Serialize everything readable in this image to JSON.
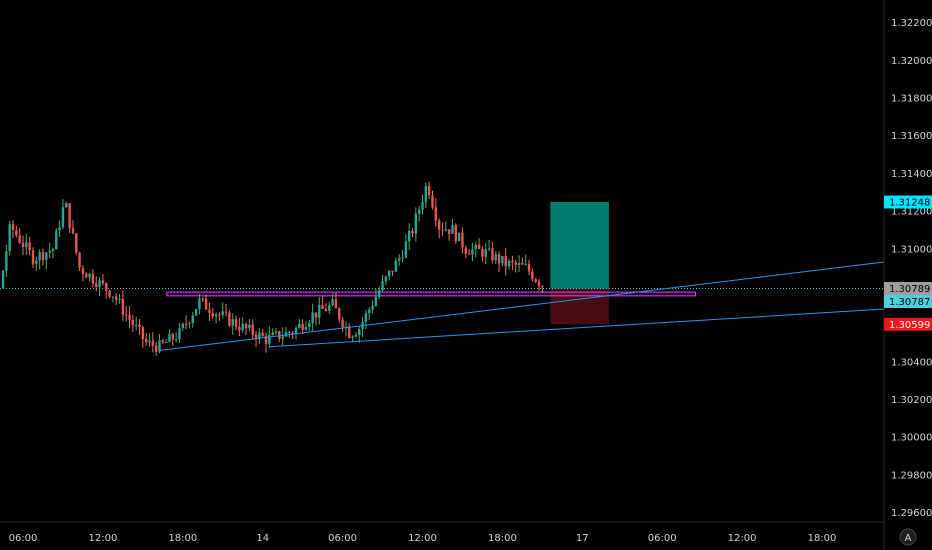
{
  "chart_data": {
    "type": "candlestick",
    "colors": {
      "background": "#000000",
      "up": "#26a69a",
      "down": "#ef5350",
      "up_wick": "#4caf50",
      "down_wick": "#e57373",
      "trendline": "#2196f3",
      "zone": "#e040fb",
      "target_box": "#00897b",
      "stop_box": "#4a0d10",
      "price_line": "#4dd0e1"
    },
    "y_axis": {
      "min": 1.2955,
      "max": 1.3232,
      "ticks": [
        "1.32200",
        "1.32000",
        "1.31800",
        "1.31600",
        "1.31400",
        "1.31200",
        "1.31000",
        "1.30800",
        "1.30600",
        "1.30400",
        "1.30200",
        "1.30000",
        "1.29800",
        "1.29600"
      ],
      "tick_values": [
        1.322,
        1.32,
        1.318,
        1.316,
        1.314,
        1.312,
        1.31,
        1.308,
        1.306,
        1.304,
        1.302,
        1.3,
        1.298,
        1.296
      ]
    },
    "x_axis": {
      "ticks": [
        "06:00",
        "12:00",
        "18:00",
        "14",
        "06:00",
        "12:00",
        "18:00",
        "17",
        "06:00",
        "12:00",
        "18:00"
      ],
      "tick_hours": [
        6,
        12,
        18,
        24,
        30,
        36,
        42,
        48,
        54,
        60,
        66
      ]
    },
    "price_path": [
      [
        0,
        1.3055
      ],
      [
        3,
        1.308
      ],
      [
        4.5,
        1.3078
      ],
      [
        5.3,
        1.3112
      ],
      [
        7,
        1.3095
      ],
      [
        8.5,
        1.31
      ],
      [
        9.4,
        1.3125
      ],
      [
        10.5,
        1.309
      ],
      [
        13,
        1.3076
      ],
      [
        14,
        1.3065
      ],
      [
        15.5,
        1.305
      ],
      [
        16.5,
        1.3048
      ],
      [
        18,
        1.3055
      ],
      [
        19.5,
        1.3072
      ],
      [
        21,
        1.3065
      ],
      [
        22.8,
        1.3058
      ],
      [
        24.5,
        1.3052
      ],
      [
        26.5,
        1.3056
      ],
      [
        28,
        1.3065
      ],
      [
        29.5,
        1.307
      ],
      [
        30.8,
        1.3055
      ],
      [
        31.5,
        1.3058
      ],
      [
        33,
        1.3078
      ],
      [
        34.5,
        1.3095
      ],
      [
        35.5,
        1.311
      ],
      [
        36.6,
        1.3135
      ],
      [
        37.5,
        1.3112
      ],
      [
        38.5,
        1.311
      ],
      [
        39.5,
        1.31
      ],
      [
        41,
        1.3098
      ],
      [
        42.5,
        1.3092
      ],
      [
        44,
        1.309
      ],
      [
        45.2,
        1.3081
      ]
    ],
    "price_tags": [
      {
        "label": "1.31248",
        "value": 1.31248,
        "bg": "#00e5ff",
        "fg": "#000000"
      },
      {
        "label": "1.30789",
        "value": 1.30789,
        "bg": "#9e9e9e",
        "fg": "#000000"
      },
      {
        "label": "1.30787",
        "value": 1.30787,
        "bg": "#4dd0e1",
        "fg": "#000000"
      },
      {
        "label": "1.30599",
        "value": 1.30599,
        "bg": "#f0141e",
        "fg": "#ffffff"
      }
    ],
    "current_price": 1.30789,
    "position": {
      "entry": 1.30789,
      "target": 1.31248,
      "stop": 1.30599,
      "start_hour": 45.6,
      "end_hour": 50
    },
    "zone": {
      "top": 1.3077,
      "bottom": 1.3075,
      "start_hour": 16.8,
      "end_hour": 56.5
    },
    "trendlines": [
      {
        "from": [
          16.2,
          1.3046
        ],
        "to": [
          74,
          1.3093
        ]
      },
      {
        "from": [
          24.5,
          1.3048
        ],
        "to": [
          74,
          1.3068
        ]
      }
    ]
  },
  "corner_label": "A"
}
